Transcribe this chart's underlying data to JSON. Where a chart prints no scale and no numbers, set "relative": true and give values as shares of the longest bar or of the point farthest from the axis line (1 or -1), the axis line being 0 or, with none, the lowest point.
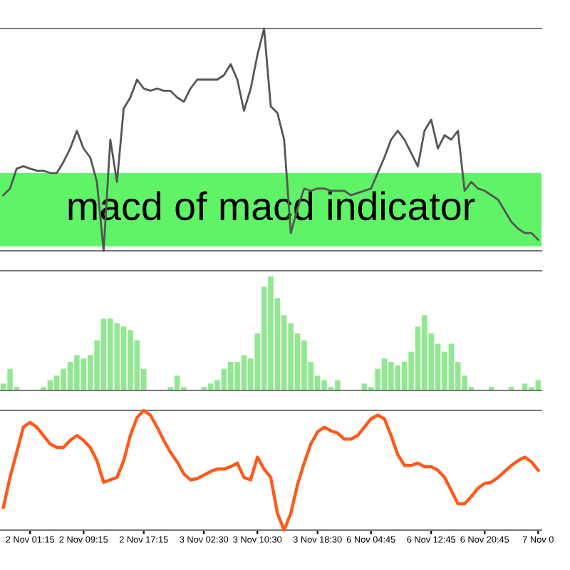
{
  "chart_data": [
    {
      "type": "line",
      "relative": true,
      "tick_labels": false,
      "categories": [
        null,
        null,
        null,
        null,
        null,
        null,
        null,
        null,
        null,
        null,
        null,
        null,
        null,
        null,
        null,
        null,
        null,
        null,
        null,
        null,
        null,
        null,
        null,
        null,
        null,
        null,
        null,
        null,
        null,
        null,
        null,
        null,
        null,
        null,
        null,
        null,
        null,
        null,
        null,
        null,
        null,
        null,
        null,
        null,
        null,
        null,
        null,
        null,
        null,
        null,
        null,
        null,
        null,
        null,
        null,
        null,
        null,
        null,
        null,
        null,
        null,
        null,
        null,
        null,
        null,
        null,
        null,
        null,
        null,
        null,
        null,
        null,
        null,
        null,
        null,
        null,
        null,
        null,
        null,
        null,
        null
      ],
      "series": [
        {
          "color": "#555555",
          "values": [
            0.25,
            0.28,
            0.37,
            0.38,
            0.37,
            0.36,
            0.36,
            0.35,
            0.35,
            0.4,
            0.46,
            0.54,
            0.46,
            0.42,
            0.31,
            0,
            0.5,
            0.31,
            0.64,
            0.69,
            0.77,
            0.73,
            0.72,
            0.73,
            0.72,
            0.72,
            0.69,
            0.67,
            0.73,
            0.77,
            0.77,
            0.77,
            0.77,
            0.79,
            0.84,
            0.77,
            0.63,
            0.73,
            0.88,
            1,
            0.65,
            0.62,
            0.5,
            0.08,
            0.19,
            0.28,
            0.27,
            0.28,
            0.28,
            0.27,
            0.27,
            0.27,
            0.25,
            0.26,
            0.27,
            0.28,
            0.35,
            0.42,
            0.5,
            0.54,
            0.5,
            0.44,
            0.38,
            0.54,
            0.59,
            0.46,
            0.52,
            0.5,
            0.54,
            0.27,
            0.31,
            0.28,
            0.27,
            0.25,
            0.23,
            0.18,
            0.13,
            0.1,
            0.08,
            0.08,
            0.05
          ]
        }
      ],
      "annotations": [
        "macd of macd indicator"
      ]
    },
    {
      "type": "bar",
      "relative": true,
      "tick_labels": false,
      "categories": [
        null,
        null,
        null,
        null,
        null,
        null,
        null,
        null,
        null,
        null,
        null,
        null,
        null,
        null,
        null,
        null,
        null,
        null,
        null,
        null,
        null,
        null,
        null,
        null,
        null,
        null,
        null,
        null,
        null,
        null,
        null,
        null,
        null,
        null,
        null,
        null,
        null,
        null,
        null,
        null,
        null,
        null,
        null,
        null,
        null,
        null,
        null,
        null,
        null,
        null,
        null,
        null,
        null,
        null,
        null,
        null,
        null,
        null,
        null,
        null,
        null,
        null,
        null,
        null,
        null,
        null,
        null,
        null,
        null,
        null,
        null,
        null,
        null,
        null,
        null,
        null,
        null,
        null,
        null,
        null,
        null
      ],
      "series": [
        {
          "color": "#90e890",
          "values": [
            0.06,
            0.19,
            0.03,
            0,
            0,
            0,
            0.03,
            0.09,
            0.13,
            0.19,
            0.25,
            0.31,
            0.28,
            0.31,
            0.44,
            0.63,
            0.63,
            0.59,
            0.56,
            0.53,
            0.44,
            0.19,
            0,
            0,
            0,
            0.03,
            0.13,
            0.03,
            0,
            0,
            0.03,
            0.06,
            0.09,
            0.19,
            0.25,
            0.25,
            0.31,
            0.28,
            0.5,
            0.91,
            1,
            0.81,
            0.66,
            0.59,
            0.5,
            0.44,
            0.25,
            0.13,
            0.09,
            0.03,
            0.09,
            0,
            0,
            0,
            0.06,
            0.03,
            0.19,
            0.28,
            0.25,
            0.22,
            0.25,
            0.34,
            0.56,
            0.66,
            0.5,
            0.41,
            0.34,
            0.41,
            0.25,
            0.13,
            0.03,
            0,
            0,
            0.03,
            0,
            0,
            0.03,
            0,
            0.06,
            0.03,
            0.09
          ]
        }
      ]
    },
    {
      "type": "line",
      "relative": true,
      "tick_labels": "x",
      "categories": [
        null,
        null,
        null,
        null,
        "2 Nov 01:15",
        null,
        null,
        null,
        null,
        null,
        null,
        null,
        "2 Nov 09:15",
        null,
        null,
        null,
        null,
        null,
        null,
        null,
        null,
        "2 Nov 17:15",
        null,
        null,
        null,
        null,
        null,
        null,
        null,
        null,
        "3 Nov 02:30",
        null,
        null,
        null,
        null,
        null,
        null,
        null,
        "3 Nov 10:30",
        null,
        null,
        null,
        null,
        null,
        null,
        null,
        null,
        "3 Nov 18:30",
        null,
        null,
        null,
        null,
        null,
        null,
        null,
        "6 Nov 04:45",
        null,
        null,
        null,
        null,
        null,
        null,
        null,
        null,
        "6 Nov 12:45",
        null,
        null,
        null,
        null,
        null,
        null,
        null,
        "6 Nov 20:45",
        null,
        null,
        null,
        null,
        null,
        null,
        null,
        "7 Nov 0"
      ],
      "series": [
        {
          "color": "#ff5a1a",
          "values": [
            0.19,
            0.44,
            0.65,
            0.86,
            0.9,
            0.86,
            0.79,
            0.72,
            0.69,
            0.69,
            0.75,
            0.79,
            0.75,
            0.69,
            0.58,
            0.4,
            0.42,
            0.44,
            0.58,
            0.79,
            0.94,
            1,
            0.96,
            0.86,
            0.75,
            0.65,
            0.57,
            0.47,
            0.42,
            0.43,
            0.46,
            0.49,
            0.51,
            0.51,
            0.53,
            0.56,
            0.44,
            0.42,
            0.61,
            0.51,
            0.44,
            0.14,
            0,
            0.14,
            0.38,
            0.56,
            0.72,
            0.82,
            0.86,
            0.83,
            0.81,
            0.76,
            0.76,
            0.79,
            0.86,
            0.93,
            0.96,
            0.93,
            0.79,
            0.63,
            0.54,
            0.54,
            0.56,
            0.53,
            0.53,
            0.5,
            0.44,
            0.33,
            0.22,
            0.22,
            0.28,
            0.35,
            0.39,
            0.4,
            0.44,
            0.49,
            0.54,
            0.58,
            0.61,
            0.57,
            0.5
          ]
        }
      ]
    }
  ]
}
